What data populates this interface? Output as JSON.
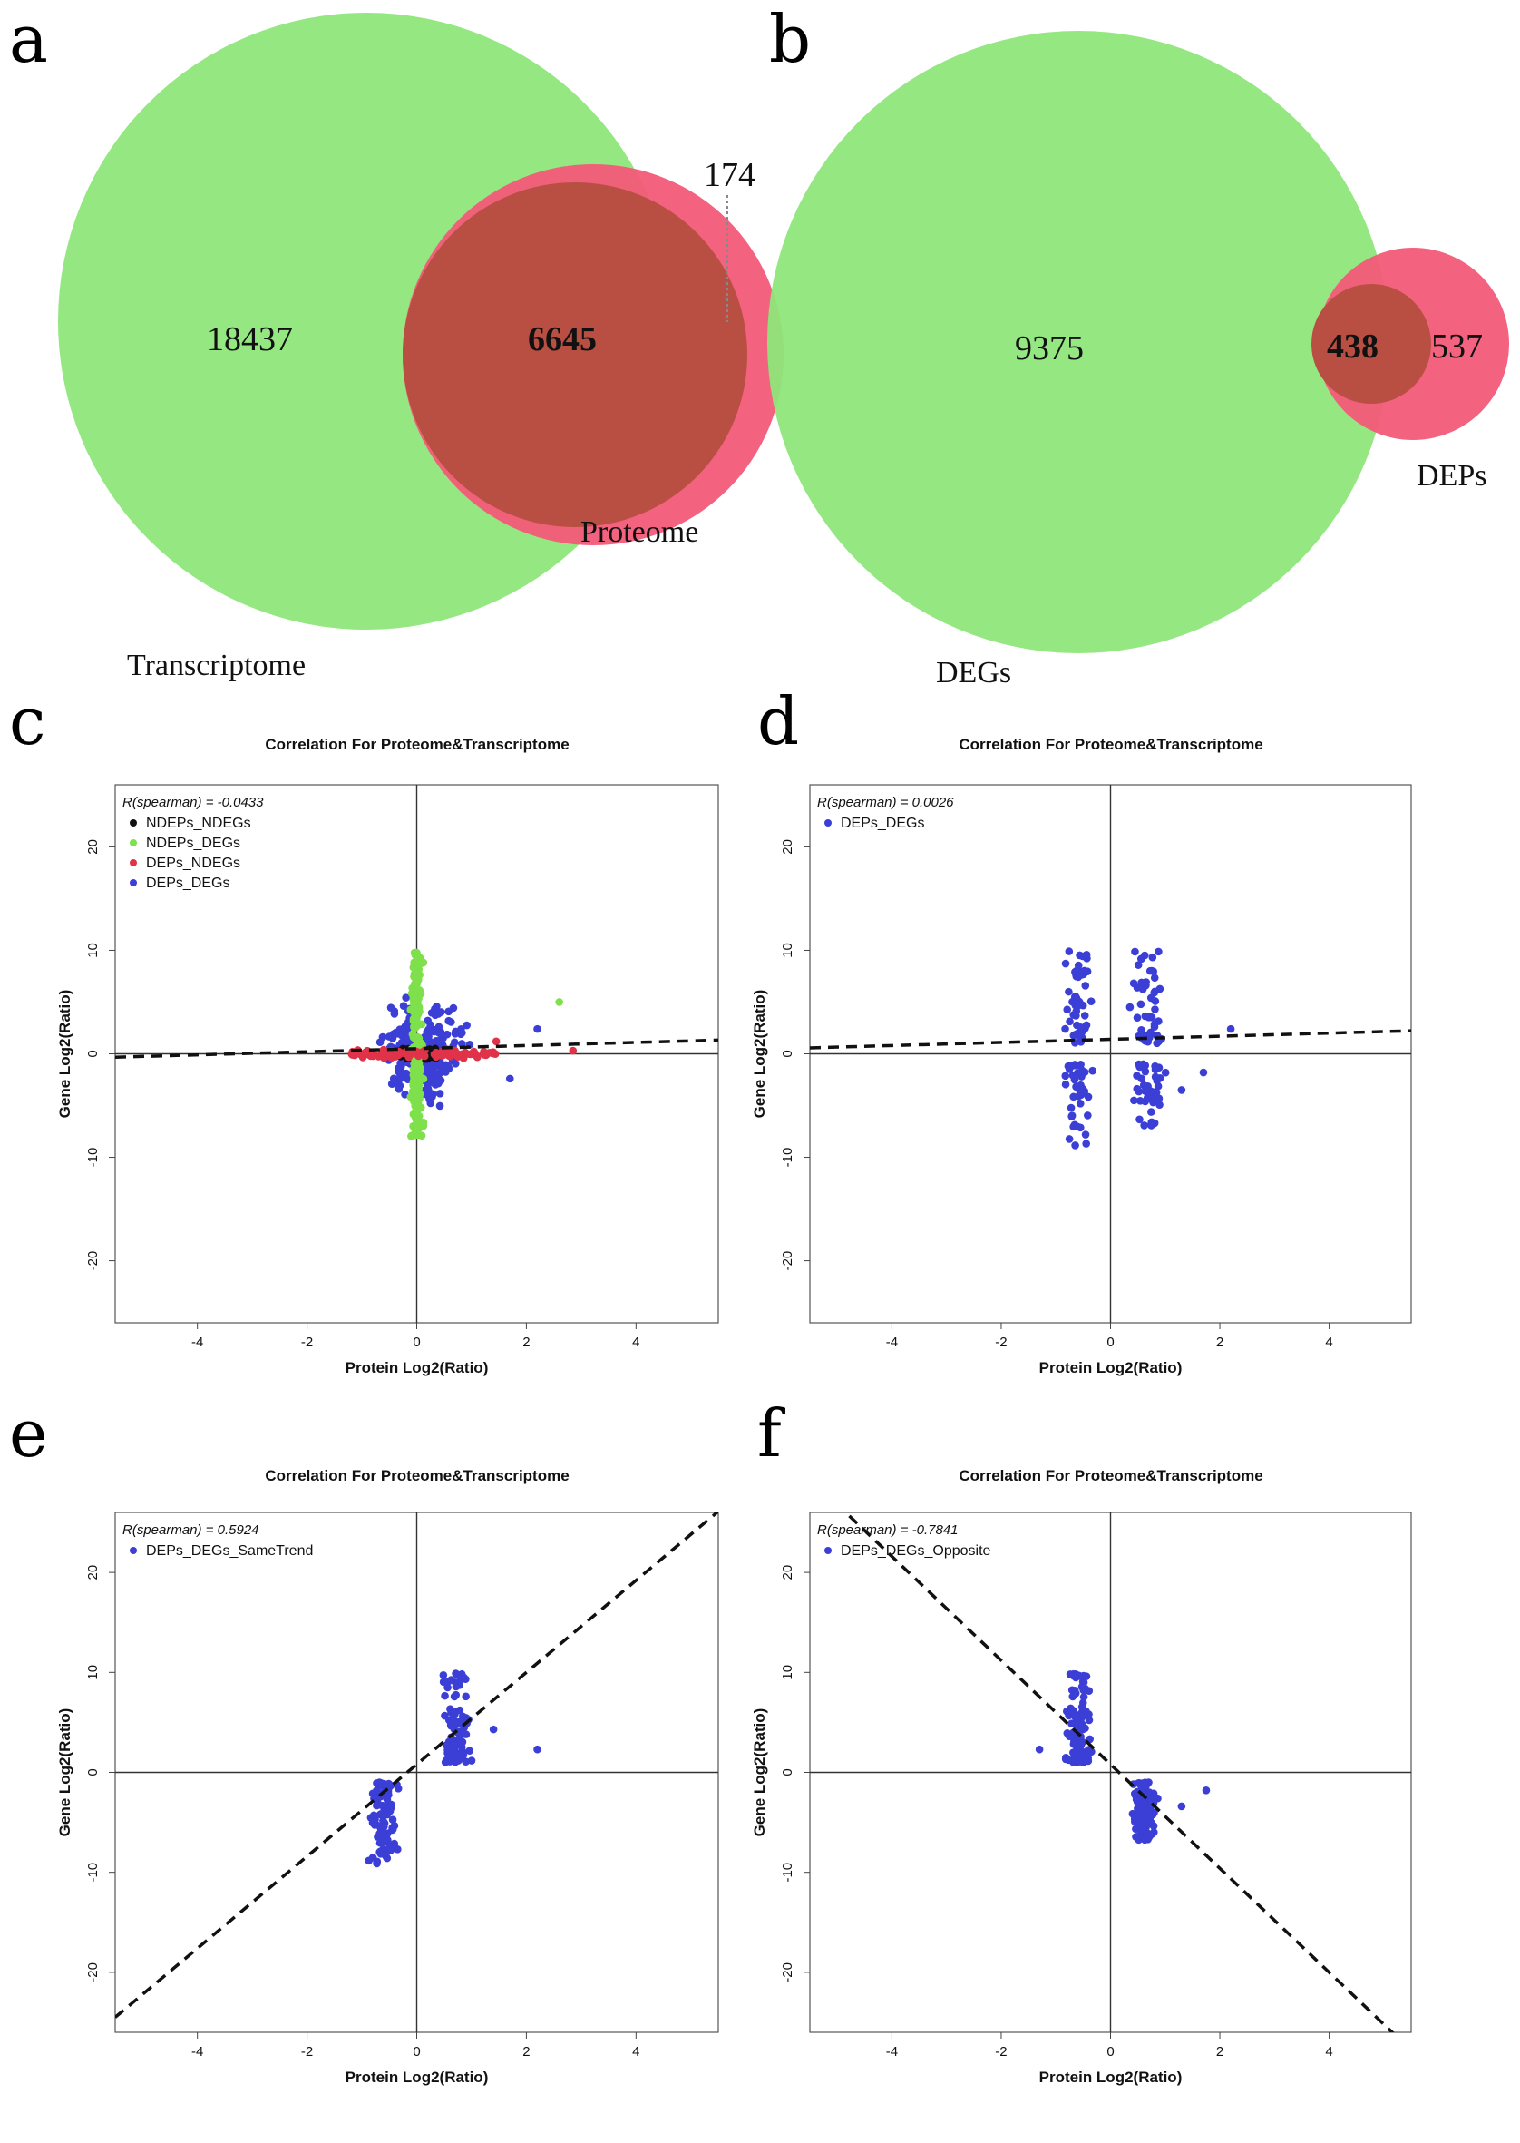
{
  "panels": {
    "a": {
      "letter": "a",
      "transcriptome_only": "18437",
      "overlap": "6645",
      "proteome_only": "174",
      "set1_label": "Transcriptome",
      "set2_label": "Proteome",
      "set1_color": "#8ee67a",
      "set2_color": "#f25a78",
      "overlap_color": "#b94f42"
    },
    "b": {
      "letter": "b",
      "degs_only": "9375",
      "overlap": "438",
      "deps_only": "537",
      "set1_label": "DEGs",
      "set2_label": "DEPs",
      "set1_color": "#8ee67a",
      "set2_color": "#f25a78",
      "overlap_color": "#b94f42"
    },
    "c": {
      "letter": "c"
    },
    "d": {
      "letter": "d"
    },
    "e": {
      "letter": "e"
    },
    "f": {
      "letter": "f"
    }
  },
  "chart_data": [
    {
      "type": "scatter",
      "panel": "c",
      "title": "Correlation For  Proteome&Transcriptome",
      "xlabel": "Protein Log2(Ratio)",
      "ylabel": "Gene Log2(Ratio)",
      "xlim": [
        -5.5,
        5.5
      ],
      "ylim": [
        -26,
        26
      ],
      "xticks": [
        -4,
        -2,
        0,
        2,
        4
      ],
      "yticks": [
        -20,
        -10,
        0,
        10,
        20
      ],
      "annotation": "R(spearman) = -0.0433",
      "legend_position": "top-left",
      "fit_line": {
        "slope": 0.15,
        "intercept": 0.5
      },
      "series": [
        {
          "name": "NDEPs_NDEGs",
          "color": "#111111",
          "description": "dense cluster",
          "x_range": [
            -0.35,
            0.35
          ],
          "y_range": [
            -0.5,
            0.5
          ]
        },
        {
          "name": "NDEPs_DEGs",
          "color": "#7ee04a",
          "description": "vertical band",
          "x_range": [
            -0.15,
            0.15
          ],
          "y_range": [
            -8,
            10
          ]
        },
        {
          "name": "DEPs_NDEGs",
          "color": "#e0334a",
          "description": "horizontal band",
          "x_range": [
            -1.2,
            1.5
          ],
          "y_range": [
            -0.6,
            0.6
          ]
        },
        {
          "name": "DEPs_DEGs",
          "color": "#3b3fd6",
          "description": "broad cloud",
          "x_range": [
            -1.1,
            1.3
          ],
          "y_range": [
            -9,
            10
          ]
        }
      ],
      "extra_points": [
        {
          "x": 2.6,
          "y": 5.0,
          "color": "#7ee04a"
        },
        {
          "x": 2.85,
          "y": 0.3,
          "color": "#e0334a"
        },
        {
          "x": 2.2,
          "y": 2.4,
          "color": "#3b3fd6"
        },
        {
          "x": 1.7,
          "y": -2.4,
          "color": "#3b3fd6"
        },
        {
          "x": 1.45,
          "y": 1.2,
          "color": "#e0334a"
        }
      ]
    },
    {
      "type": "scatter",
      "panel": "d",
      "title": "Correlation For Proteome&Transcriptome",
      "xlabel": "Protein Log2(Ratio)",
      "ylabel": "Gene Log2(Ratio)",
      "xlim": [
        -5.5,
        5.5
      ],
      "ylim": [
        -26,
        26
      ],
      "xticks": [
        -4,
        -2,
        0,
        2,
        4
      ],
      "yticks": [
        -20,
        -10,
        0,
        10,
        20
      ],
      "annotation": "R(spearman) = 0.0026",
      "legend_position": "top-left",
      "fit_line": {
        "slope": 0.15,
        "intercept": 1.4
      },
      "series": [
        {
          "name": "DEPs_DEGs",
          "color": "#3b3fd6",
          "description": "two clusters",
          "clusters": [
            {
              "x_range": [
                -1.0,
                -0.2
              ],
              "y_range": [
                -9,
                10
              ]
            },
            {
              "x_range": [
                0.2,
                1.2
              ],
              "y_range": [
                -7,
                10
              ]
            }
          ]
        }
      ],
      "extra_points": [
        {
          "x": 2.2,
          "y": 2.4,
          "color": "#3b3fd6"
        },
        {
          "x": 1.7,
          "y": -1.8,
          "color": "#3b3fd6"
        },
        {
          "x": 1.3,
          "y": -3.5,
          "color": "#3b3fd6"
        }
      ]
    },
    {
      "type": "scatter",
      "panel": "e",
      "title": "Correlation For Proteome&Transcriptome",
      "xlabel": "Protein Log2(Ratio)",
      "ylabel": "Gene Log2(Ratio)",
      "xlim": [
        -5.5,
        5.5
      ],
      "ylim": [
        -26,
        26
      ],
      "xticks": [
        -4,
        -2,
        0,
        2,
        4
      ],
      "yticks": [
        -20,
        -10,
        0,
        10,
        20
      ],
      "annotation": "R(spearman) = 0.5924",
      "legend_position": "top-left",
      "fit_line": {
        "slope": 4.6,
        "intercept": 0.8
      },
      "series": [
        {
          "name": "DEPs_DEGs_SameTrend",
          "color": "#3b3fd6",
          "description": "two clusters",
          "clusters": [
            {
              "x_range": [
                -1.0,
                -0.2
              ],
              "y_range": [
                -9.5,
                -1
              ]
            },
            {
              "x_range": [
                0.2,
                1.2
              ],
              "y_range": [
                1,
                10
              ]
            }
          ]
        }
      ],
      "extra_points": [
        {
          "x": 2.2,
          "y": 2.3,
          "color": "#3b3fd6"
        },
        {
          "x": 1.4,
          "y": 4.3,
          "color": "#3b3fd6"
        }
      ]
    },
    {
      "type": "scatter",
      "panel": "f",
      "title": "Correlation For Proteome&Transcriptome",
      "xlabel": "Protein Log2(Ratio)",
      "ylabel": "Gene Log2(Ratio)",
      "xlim": [
        -5.5,
        5.5
      ],
      "ylim": [
        -26,
        26
      ],
      "xticks": [
        -4,
        -2,
        0,
        2,
        4
      ],
      "yticks": [
        -20,
        -10,
        0,
        10,
        20
      ],
      "annotation": "R(spearman) = -0.7841",
      "legend_position": "top-left",
      "fit_line": {
        "slope": -5.2,
        "intercept": 0.8
      },
      "series": [
        {
          "name": "DEPs_DEGs_Opposite",
          "color": "#3b3fd6",
          "description": "two clusters",
          "clusters": [
            {
              "x_range": [
                -1.0,
                -0.2
              ],
              "y_range": [
                1,
                10
              ]
            },
            {
              "x_range": [
                0.2,
                1.0
              ],
              "y_range": [
                -7,
                -1
              ]
            }
          ]
        }
      ],
      "extra_points": [
        {
          "x": 1.75,
          "y": -1.8,
          "color": "#3b3fd6"
        },
        {
          "x": 1.3,
          "y": -3.4,
          "color": "#3b3fd6"
        },
        {
          "x": -1.3,
          "y": 2.3,
          "color": "#3b3fd6"
        }
      ]
    }
  ]
}
